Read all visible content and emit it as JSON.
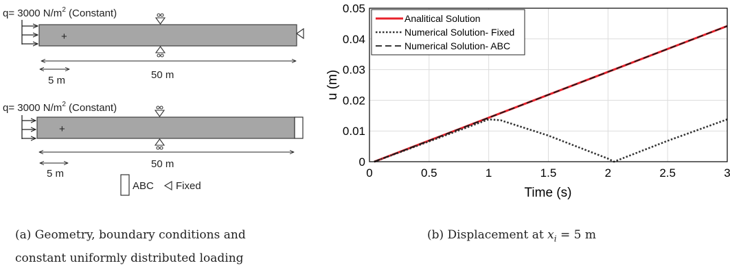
{
  "figure_a": {
    "top": {
      "load_label": "q= 3000 N/m",
      "load_sup": "2",
      "load_suffix": " (Constant)",
      "length_label": "50 m",
      "dim_label": "5 m",
      "boundary": "Fixed"
    },
    "bottom": {
      "load_label": "q= 3000 N/m",
      "load_sup": "2",
      "load_suffix": "  (Constant)",
      "length_label": "50 m",
      "dim_label": "5 m",
      "boundary": "ABC"
    },
    "legend": {
      "abc_label": "ABC",
      "fixed_label": "Fixed"
    },
    "colors": {
      "beam_fill": "#a6a6a6",
      "beam_stroke": "#404040"
    }
  },
  "captions": {
    "a_line1": "(a) Geometry, boundary conditions and",
    "a_line2": "constant uniformly distributed loading",
    "b_prefix": "(b) Displacement at ",
    "b_math": "x",
    "b_sub": "i",
    "b_suffix": " = 5 m"
  },
  "chart_data": {
    "type": "line",
    "xlabel": "Time (s)",
    "ylabel": "u (m)",
    "xlim": [
      0,
      3
    ],
    "ylim": [
      0,
      0.05
    ],
    "xticks": [
      0,
      0.5,
      1,
      1.5,
      2,
      2.5,
      3
    ],
    "xtick_labels": [
      "0",
      "0.5",
      "1",
      "1.5",
      "2",
      "2.5",
      "3"
    ],
    "yticks": [
      0,
      0.01,
      0.02,
      0.03,
      0.04,
      0.05
    ],
    "ytick_labels": [
      "0",
      "0.01",
      "0.02",
      "0.03",
      "0.04",
      "0.05"
    ],
    "grid": true,
    "legend_position": "top-left",
    "series": [
      {
        "name": "Analitical Solution",
        "style": "solid",
        "color": "#e8202a",
        "x": [
          0.04,
          3.0
        ],
        "y": [
          0.0,
          0.0442
        ]
      },
      {
        "name": "Numerical Solution- Fixed",
        "style": "dotted",
        "color": "#333333",
        "x": [
          0.04,
          0.5,
          1.0,
          1.1,
          1.5,
          2.0,
          2.05,
          2.5,
          3.0
        ],
        "y": [
          0.0,
          0.0066,
          0.0138,
          0.0135,
          0.0085,
          0.001,
          0.0,
          0.0068,
          0.0138
        ]
      },
      {
        "name": "Numerical Solution- ABC",
        "style": "dashed",
        "color": "#1a1a1a",
        "x": [
          0.04,
          3.0
        ],
        "y": [
          0.0,
          0.0442
        ]
      }
    ]
  }
}
